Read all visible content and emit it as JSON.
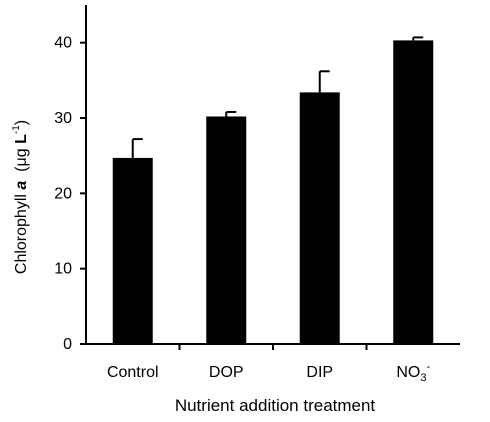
{
  "chart_data": {
    "type": "bar",
    "title": "",
    "xlabel": "Nutrient addition treatment",
    "ylabel": {
      "prefix": "Chlorophyll ",
      "italic": "a",
      "unit_open": "  (",
      "mu": "μ",
      "g": "g ",
      "L": "L",
      "exp": "-1",
      "close": ")"
    },
    "categories": [
      {
        "label": "Control",
        "sub": "",
        "sup": ""
      },
      {
        "label": "DOP",
        "sub": "",
        "sup": ""
      },
      {
        "label": "DIP",
        "sub": "",
        "sup": ""
      },
      {
        "label": "NO",
        "sub": "3",
        "sup": "-"
      }
    ],
    "values": [
      24.7,
      30.2,
      33.4,
      40.3
    ],
    "errors": [
      2.5,
      0.6,
      2.8,
      0.4
    ],
    "ylim": [
      0,
      45
    ],
    "yticks": [
      0,
      10,
      20,
      30,
      40
    ],
    "grid": false,
    "bar_color": "#000000",
    "axis_color": "#000000"
  }
}
